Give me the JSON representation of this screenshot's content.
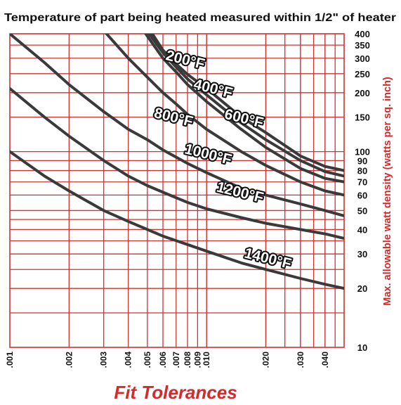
{
  "chart_data": {
    "type": "line",
    "title": "Temperature of part being heated measured within 1/2\" of heater",
    "xlabel": "Fit Tolerances",
    "ylabel": "Max. allowable watt density (watts per sq. inch)",
    "x_scale": "log",
    "y_scale": "log",
    "xlim": [
      0.001,
      0.05
    ],
    "ylim": [
      10,
      400
    ],
    "grid": true,
    "x_ticks": [
      {
        "value": 0.001,
        "label": ".001"
      },
      {
        "value": 0.002,
        "label": ".002"
      },
      {
        "value": 0.003,
        "label": ".003"
      },
      {
        "value": 0.004,
        "label": ".004"
      },
      {
        "value": 0.005,
        "label": ".005"
      },
      {
        "value": 0.006,
        "label": ".006"
      },
      {
        "value": 0.007,
        "label": ".007"
      },
      {
        "value": 0.008,
        "label": ".008"
      },
      {
        "value": 0.009,
        "label": ".009"
      },
      {
        "value": 0.01,
        "label": ".010"
      },
      {
        "value": 0.02,
        "label": ".020"
      },
      {
        "value": 0.03,
        "label": ".030"
      },
      {
        "value": 0.04,
        "label": ".040"
      }
    ],
    "y_ticks": [
      {
        "value": 400,
        "label": "400"
      },
      {
        "value": 350,
        "label": "350"
      },
      {
        "value": 300,
        "label": "300"
      },
      {
        "value": 250,
        "label": "250"
      },
      {
        "value": 200,
        "label": "200"
      },
      {
        "value": 150,
        "label": "150"
      },
      {
        "value": 100,
        "label": "100"
      },
      {
        "value": 90,
        "label": "90"
      },
      {
        "value": 80,
        "label": "80"
      },
      {
        "value": 70,
        "label": "70"
      },
      {
        "value": 60,
        "label": "60"
      },
      {
        "value": 50,
        "label": "50"
      },
      {
        "value": 40,
        "label": "40"
      },
      {
        "value": 30,
        "label": "30"
      },
      {
        "value": 20,
        "label": "20"
      },
      {
        "value": 10,
        "label": "10"
      }
    ],
    "series": [
      {
        "name": "200°F",
        "label_at": [
          0.0078,
          295
        ],
        "points": [
          [
            0.0053,
            400
          ],
          [
            0.006,
            330
          ],
          [
            0.007,
            280
          ],
          [
            0.008,
            248
          ],
          [
            0.01,
            210
          ],
          [
            0.015,
            150
          ],
          [
            0.02,
            125
          ],
          [
            0.03,
            95
          ],
          [
            0.04,
            84
          ],
          [
            0.05,
            80
          ]
        ]
      },
      {
        "name": "400°F",
        "label_at": [
          0.0108,
          210
        ],
        "points": [
          [
            0.0051,
            400
          ],
          [
            0.006,
            320
          ],
          [
            0.007,
            270
          ],
          [
            0.008,
            235
          ],
          [
            0.01,
            195
          ],
          [
            0.015,
            140
          ],
          [
            0.02,
            115
          ],
          [
            0.03,
            90
          ],
          [
            0.04,
            79
          ],
          [
            0.05,
            75
          ]
        ]
      },
      {
        "name": "600°F",
        "label_at": [
          0.0155,
          148
        ],
        "points": [
          [
            0.0049,
            400
          ],
          [
            0.006,
            300
          ],
          [
            0.007,
            255
          ],
          [
            0.008,
            220
          ],
          [
            0.01,
            180
          ],
          [
            0.015,
            130
          ],
          [
            0.02,
            105
          ],
          [
            0.03,
            82
          ],
          [
            0.04,
            73
          ],
          [
            0.05,
            70
          ]
        ]
      },
      {
        "name": "800°F",
        "label_at": [
          0.0068,
          150
        ],
        "points": [
          [
            0.0031,
            400
          ],
          [
            0.004,
            300
          ],
          [
            0.005,
            240
          ],
          [
            0.006,
            200
          ],
          [
            0.007,
            175
          ],
          [
            0.008,
            155
          ],
          [
            0.01,
            130
          ],
          [
            0.015,
            100
          ],
          [
            0.02,
            85
          ],
          [
            0.03,
            70
          ],
          [
            0.04,
            63
          ],
          [
            0.05,
            60
          ]
        ]
      },
      {
        "name": "1000°F",
        "label_at": [
          0.0102,
          97
        ],
        "points": [
          [
            0.001,
            400
          ],
          [
            0.0015,
            285
          ],
          [
            0.002,
            220
          ],
          [
            0.003,
            160
          ],
          [
            0.004,
            130
          ],
          [
            0.005,
            115
          ],
          [
            0.006,
            102
          ],
          [
            0.008,
            87
          ],
          [
            0.01,
            78
          ],
          [
            0.015,
            65
          ],
          [
            0.02,
            60
          ],
          [
            0.03,
            54
          ],
          [
            0.04,
            50
          ],
          [
            0.05,
            47
          ]
        ]
      },
      {
        "name": "1200°F",
        "label_at": [
          0.0148,
          62
        ],
        "points": [
          [
            0.001,
            210
          ],
          [
            0.0015,
            150
          ],
          [
            0.002,
            120
          ],
          [
            0.003,
            90
          ],
          [
            0.004,
            75
          ],
          [
            0.005,
            67
          ],
          [
            0.006,
            62
          ],
          [
            0.008,
            55
          ],
          [
            0.01,
            51
          ],
          [
            0.015,
            46
          ],
          [
            0.02,
            43
          ],
          [
            0.03,
            40
          ],
          [
            0.04,
            38
          ],
          [
            0.05,
            36
          ]
        ]
      },
      {
        "name": "1400°F",
        "label_at": [
          0.0205,
          28.5
        ],
        "points": [
          [
            0.001,
            100
          ],
          [
            0.0015,
            75
          ],
          [
            0.002,
            63
          ],
          [
            0.003,
            50
          ],
          [
            0.004,
            44
          ],
          [
            0.005,
            40
          ],
          [
            0.006,
            37
          ],
          [
            0.008,
            33.5
          ],
          [
            0.01,
            31
          ],
          [
            0.015,
            27
          ],
          [
            0.02,
            25
          ],
          [
            0.03,
            22.5
          ],
          [
            0.04,
            21
          ],
          [
            0.05,
            20
          ]
        ]
      }
    ]
  },
  "colors": {
    "grid": "#cc3333",
    "curve": "#3a3a3a",
    "axis_label": "#d42a2a",
    "text": "#111111"
  }
}
